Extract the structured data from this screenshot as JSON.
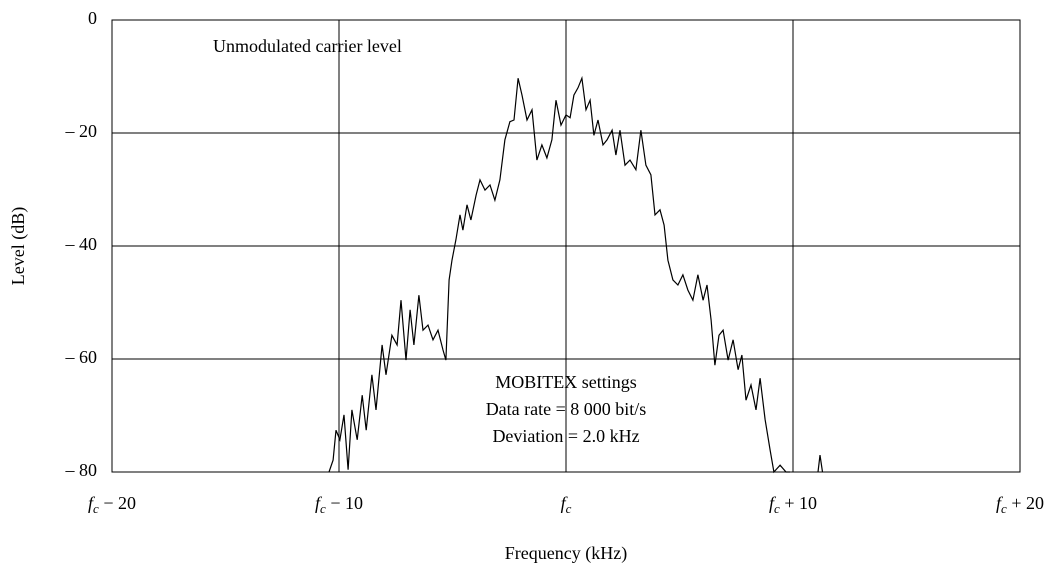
{
  "chart_data": {
    "type": "line",
    "xlabel": "Frequency (kHz)",
    "ylabel": "Level (dB)",
    "annotations": [
      "Unmodulated carrier level",
      "MOBITEX settings",
      "Data rate = 8 000 bit/s",
      "Deviation = 2.0 kHz"
    ],
    "xlim": [
      -20,
      20
    ],
    "ylim": [
      -80,
      0
    ],
    "xticks": [
      {
        "value": -20,
        "label": "fc − 20"
      },
      {
        "value": -10,
        "label": "fc − 10"
      },
      {
        "value": 0,
        "label": "fc"
      },
      {
        "value": 10,
        "label": "fc + 10"
      },
      {
        "value": 20,
        "label": "fc + 20"
      }
    ],
    "yticks": [
      {
        "value": -80,
        "label": "– 80"
      },
      {
        "value": -60,
        "label": "– 60"
      },
      {
        "value": -40,
        "label": "– 40"
      },
      {
        "value": -20,
        "label": "– 20"
      },
      0
    ],
    "grid": true,
    "color": "#000000",
    "x": [
      -10.44,
      -10.26,
      -10.13,
      -9.96,
      -9.78,
      -9.6,
      -9.43,
      -9.2,
      -8.98,
      -8.8,
      -8.55,
      -8.37,
      -8.1,
      -7.93,
      -7.67,
      -7.44,
      -7.27,
      -7.05,
      -6.87,
      -6.7,
      -6.48,
      -6.3,
      -6.08,
      -5.86,
      -5.64,
      -5.42,
      -5.29,
      -5.15,
      -5.02,
      -4.85,
      -4.67,
      -4.54,
      -4.36,
      -4.19,
      -3.96,
      -3.79,
      -3.57,
      -3.35,
      -3.13,
      -2.91,
      -2.69,
      -2.47,
      -2.29,
      -2.11,
      -1.94,
      -1.72,
      -1.5,
      -1.28,
      -1.06,
      -0.84,
      -0.62,
      -0.44,
      -0.22,
      0,
      0.18,
      0.35,
      0.53,
      0.7,
      0.88,
      1.06,
      1.23,
      1.41,
      1.63,
      1.81,
      2.03,
      2.2,
      2.38,
      2.6,
      2.82,
      3.08,
      3.3,
      3.52,
      3.74,
      3.92,
      4.14,
      4.32,
      4.49,
      4.71,
      4.93,
      5.15,
      5.37,
      5.59,
      5.81,
      6.04,
      6.21,
      6.39,
      6.56,
      6.74,
      6.92,
      7.14,
      7.36,
      7.58,
      7.75,
      7.93,
      8.15,
      8.37,
      8.55,
      8.77,
      8.99,
      9.16,
      9.43,
      9.69,
      9.87,
      null,
      11.1,
      11.19,
      11.3
    ],
    "values": [
      -80,
      -77.9,
      -72.6,
      -74.3,
      -69.9,
      -79.6,
      -69,
      -74.3,
      -66.4,
      -72.6,
      -62.8,
      -69,
      -57.5,
      -62.8,
      -55.8,
      -57.5,
      -49.6,
      -60.2,
      -51.3,
      -57.5,
      -48.7,
      -54.9,
      -54,
      -56.6,
      -54.9,
      -58.4,
      -60.2,
      -46,
      -42.5,
      -38.9,
      -34.5,
      -37.2,
      -32.7,
      -35.4,
      -31,
      -28.3,
      -30.1,
      -29.2,
      -31.9,
      -28.3,
      -21.2,
      -18,
      -17.7,
      -10.3,
      -13.3,
      -17.7,
      -15.9,
      -24.8,
      -22.1,
      -24.4,
      -21.2,
      -14.2,
      -18.6,
      -16.8,
      -17.3,
      -13.3,
      -12,
      -10.3,
      -15.9,
      -14.2,
      -20.4,
      -17.7,
      -22.1,
      -21.2,
      -19.5,
      -23.9,
      -19.5,
      -25.7,
      -24.8,
      -26.5,
      -19.5,
      -25.7,
      -27.4,
      -34.5,
      -33.6,
      -36.3,
      -42.5,
      -46,
      -46.9,
      -45.1,
      -47.8,
      -49.6,
      -45.1,
      -49.6,
      -46.9,
      -53.1,
      -61.1,
      -55.8,
      -54.9,
      -60.2,
      -56.6,
      -61.9,
      -59.3,
      -67.3,
      -64.6,
      -69,
      -63.4,
      -70.7,
      -76.1,
      -80,
      -78.8,
      -80,
      -80,
      null,
      -80,
      -77,
      -80
    ]
  }
}
